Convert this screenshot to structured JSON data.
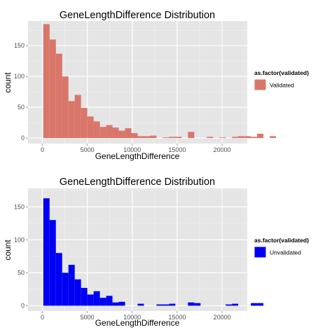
{
  "chart_data": [
    {
      "type": "bar",
      "title": "GeneLengthDifference Distribution",
      "xlabel": "GeneLengthDifference",
      "ylabel": "count",
      "xlim": [
        -1600,
        22800
      ],
      "ylim": [
        -9,
        190
      ],
      "xticks": [
        0,
        5000,
        10000,
        15000,
        20000
      ],
      "xtick_labels": [
        "0",
        "5000",
        "10000",
        "15000",
        "20000"
      ],
      "yticks": [
        0,
        50,
        100,
        150
      ],
      "ytick_labels": [
        "0",
        "50",
        "100",
        "150"
      ],
      "grid": true,
      "bin_width": 700,
      "bin_start": 100,
      "values": [
        185,
        160,
        137,
        100,
        60,
        70,
        49,
        35,
        27,
        18,
        21,
        17,
        12,
        16,
        8,
        3,
        3,
        4,
        0,
        1,
        2,
        2,
        0,
        10,
        0,
        0,
        2,
        0,
        1,
        0,
        2,
        3,
        3,
        2,
        7,
        0,
        3
      ],
      "color": "#d9766a",
      "legend_title": "as.factor(validated)",
      "legend_label": "Validated",
      "legend_position": "right"
    },
    {
      "type": "bar",
      "title": "GeneLengthDifference Distribution",
      "xlabel": "GeneLengthDifference",
      "ylabel": "count",
      "xlim": [
        -1600,
        22800
      ],
      "ylim": [
        -8,
        178
      ],
      "xticks": [
        0,
        5000,
        10000,
        15000,
        20000
      ],
      "xtick_labels": [
        "0",
        "5000",
        "10000",
        "15000",
        "20000"
      ],
      "yticks": [
        0,
        50,
        100,
        150
      ],
      "ytick_labels": [
        "0",
        "50",
        "100",
        "150"
      ],
      "grid": true,
      "bin_width": 700,
      "bin_start": 100,
      "values": [
        163,
        130,
        80,
        50,
        62,
        40,
        27,
        17,
        22,
        12,
        15,
        5,
        6,
        0,
        0,
        3,
        0,
        0,
        2,
        2,
        3,
        0,
        0,
        5,
        4,
        0,
        0,
        0,
        0,
        2,
        3,
        0,
        0,
        4,
        4,
        0,
        0
      ],
      "color": "#0000f5",
      "legend_title": "as.factor(validated)",
      "legend_label": "Unvalidated",
      "legend_position": "right"
    }
  ]
}
